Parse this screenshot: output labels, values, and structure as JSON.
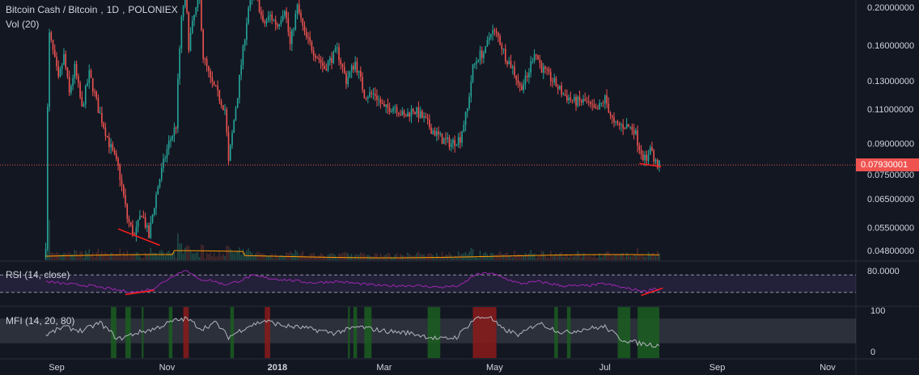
{
  "header": {
    "symbol": "Bitcoin Cash / Bitcoin",
    "interval": "1D",
    "exchange": "POLONIEX",
    "volume_label": "Vol (20)"
  },
  "panes": {
    "rsi_label": "RSI (14, close)",
    "mfi_label": "MFI (14, 20, 80)"
  },
  "colors": {
    "background": "#131722",
    "up": "#26a69a",
    "down": "#ef5350",
    "rsi_line": "#9c27b0",
    "ma_line": "#ff9800",
    "last_price": "#ef5350",
    "trendline": "#ff1e1e",
    "mfi_overbought": "#8b1a1a",
    "mfi_oversold": "#1b5e20",
    "mfi_line": "#b2b5be",
    "axis_text": "#d1d4dc"
  },
  "chart_data": [
    {
      "type": "candlestick",
      "name": "BCH/BTC price",
      "y_scale": "log",
      "last_price": "0.07930001",
      "y_ticks": [
        "0.20000000",
        "0.16000000",
        "0.13000000",
        "0.11000000",
        "0.09000000",
        "0.07500000",
        "0.06500000",
        "0.05500000",
        "0.04800000"
      ],
      "x_ticks": [
        "Sep",
        "Nov",
        "2018",
        "Mar",
        "May",
        "Jul",
        "Sep",
        "Nov"
      ],
      "path": [
        [
          "2017-08-26",
          0.05
        ],
        [
          "2017-08-28",
          0.17
        ],
        [
          "2017-09-02",
          0.13
        ],
        [
          "2017-09-05",
          0.15
        ],
        [
          "2017-09-08",
          0.12
        ],
        [
          "2017-09-11",
          0.14
        ],
        [
          "2017-09-15",
          0.11
        ],
        [
          "2017-09-19",
          0.135
        ],
        [
          "2017-09-24",
          0.11
        ],
        [
          "2017-09-30",
          0.09
        ],
        [
          "2017-10-05",
          0.078
        ],
        [
          "2017-10-10",
          0.058
        ],
        [
          "2017-10-14",
          0.052
        ],
        [
          "2017-10-18",
          0.06
        ],
        [
          "2017-10-22",
          0.052
        ],
        [
          "2017-10-27",
          0.07
        ],
        [
          "2017-11-02",
          0.09
        ],
        [
          "2017-11-06",
          0.1
        ],
        [
          "2017-11-09",
          0.185
        ],
        [
          "2017-11-11",
          0.22
        ],
        [
          "2017-11-13",
          0.16
        ],
        [
          "2017-11-16",
          0.19
        ],
        [
          "2017-11-19",
          0.21
        ],
        [
          "2017-11-21",
          0.15
        ],
        [
          "2017-11-25",
          0.13
        ],
        [
          "2017-11-29",
          0.12
        ],
        [
          "2017-12-03",
          0.11
        ],
        [
          "2017-12-05",
          0.08
        ],
        [
          "2017-12-07",
          0.095
        ],
        [
          "2017-12-10",
          0.12
        ],
        [
          "2017-12-13",
          0.155
        ],
        [
          "2017-12-16",
          0.2
        ],
        [
          "2017-12-20",
          0.22
        ],
        [
          "2017-12-24",
          0.18
        ],
        [
          "2017-12-28",
          0.19
        ],
        [
          "2018-01-01",
          0.18
        ],
        [
          "2018-01-05",
          0.2
        ],
        [
          "2018-01-08",
          0.16
        ],
        [
          "2018-01-12",
          0.2
        ],
        [
          "2018-01-16",
          0.17
        ],
        [
          "2018-01-21",
          0.155
        ],
        [
          "2018-01-27",
          0.14
        ],
        [
          "2018-02-03",
          0.155
        ],
        [
          "2018-02-08",
          0.13
        ],
        [
          "2018-02-13",
          0.145
        ],
        [
          "2018-02-18",
          0.12
        ],
        [
          "2018-02-24",
          0.12
        ],
        [
          "2018-03-01",
          0.11
        ],
        [
          "2018-03-07",
          0.112
        ],
        [
          "2018-03-12",
          0.105
        ],
        [
          "2018-03-17",
          0.11
        ],
        [
          "2018-03-22",
          0.105
        ],
        [
          "2018-03-27",
          0.098
        ],
        [
          "2018-04-02",
          0.092
        ],
        [
          "2018-04-07",
          0.09
        ],
        [
          "2018-04-12",
          0.093
        ],
        [
          "2018-04-16",
          0.11
        ],
        [
          "2018-04-19",
          0.14
        ],
        [
          "2018-04-22",
          0.15
        ],
        [
          "2018-04-26",
          0.155
        ],
        [
          "2018-04-29",
          0.175
        ],
        [
          "2018-05-03",
          0.168
        ],
        [
          "2018-05-07",
          0.15
        ],
        [
          "2018-05-11",
          0.14
        ],
        [
          "2018-05-15",
          0.125
        ],
        [
          "2018-05-19",
          0.132
        ],
        [
          "2018-05-23",
          0.155
        ],
        [
          "2018-05-27",
          0.14
        ],
        [
          "2018-06-02",
          0.13
        ],
        [
          "2018-06-08",
          0.12
        ],
        [
          "2018-06-14",
          0.115
        ],
        [
          "2018-06-20",
          0.115
        ],
        [
          "2018-06-26",
          0.108
        ],
        [
          "2018-07-01",
          0.117
        ],
        [
          "2018-07-06",
          0.1
        ],
        [
          "2018-07-12",
          0.1
        ],
        [
          "2018-07-17",
          0.098
        ],
        [
          "2018-07-20",
          0.088
        ],
        [
          "2018-07-24",
          0.08
        ],
        [
          "2018-07-26",
          0.09
        ],
        [
          "2018-07-28",
          0.081
        ],
        [
          "2018-07-31",
          0.079
        ]
      ]
    },
    {
      "type": "bar",
      "name": "Volume",
      "ma_length": 20
    },
    {
      "type": "line",
      "name": "RSI",
      "y_ticks": [
        "80.0000"
      ],
      "bands": [
        70,
        30
      ],
      "path": [
        [
          "2017-08-26",
          55
        ],
        [
          "2017-09-05",
          50
        ],
        [
          "2017-09-20",
          45
        ],
        [
          "2017-10-05",
          35
        ],
        [
          "2017-10-15",
          30
        ],
        [
          "2017-10-25",
          40
        ],
        [
          "2017-11-05",
          70
        ],
        [
          "2017-11-12",
          82
        ],
        [
          "2017-11-18",
          60
        ],
        [
          "2017-11-25",
          58
        ],
        [
          "2017-12-03",
          48
        ],
        [
          "2017-12-10",
          55
        ],
        [
          "2017-12-18",
          68
        ],
        [
          "2017-12-28",
          62
        ],
        [
          "2018-01-08",
          58
        ],
        [
          "2018-01-20",
          52
        ],
        [
          "2018-02-03",
          55
        ],
        [
          "2018-02-15",
          50
        ],
        [
          "2018-03-01",
          45
        ],
        [
          "2018-03-15",
          46
        ],
        [
          "2018-04-01",
          42
        ],
        [
          "2018-04-12",
          45
        ],
        [
          "2018-04-20",
          70
        ],
        [
          "2018-04-28",
          75
        ],
        [
          "2018-05-05",
          65
        ],
        [
          "2018-05-15",
          50
        ],
        [
          "2018-05-25",
          55
        ],
        [
          "2018-06-08",
          45
        ],
        [
          "2018-06-20",
          45
        ],
        [
          "2018-07-01",
          50
        ],
        [
          "2018-07-12",
          40
        ],
        [
          "2018-07-24",
          32
        ],
        [
          "2018-07-28",
          40
        ],
        [
          "2018-07-31",
          35
        ]
      ]
    },
    {
      "type": "line",
      "name": "MFI",
      "y_ticks": [
        "100",
        "0"
      ],
      "bands": [
        80,
        20
      ],
      "path": [
        [
          "2017-08-26",
          40
        ],
        [
          "2017-09-05",
          60
        ],
        [
          "2017-09-15",
          50
        ],
        [
          "2017-09-25",
          70
        ],
        [
          "2017-10-05",
          30
        ],
        [
          "2017-10-15",
          45
        ],
        [
          "2017-10-25",
          55
        ],
        [
          "2017-11-05",
          75
        ],
        [
          "2017-11-12",
          80
        ],
        [
          "2017-11-20",
          55
        ],
        [
          "2017-11-28",
          70
        ],
        [
          "2017-12-05",
          35
        ],
        [
          "2017-12-15",
          60
        ],
        [
          "2017-12-25",
          75
        ],
        [
          "2018-01-05",
          62
        ],
        [
          "2018-01-15",
          58
        ],
        [
          "2018-02-01",
          45
        ],
        [
          "2018-02-15",
          60
        ],
        [
          "2018-03-01",
          50
        ],
        [
          "2018-03-15",
          45
        ],
        [
          "2018-04-01",
          30
        ],
        [
          "2018-04-10",
          35
        ],
        [
          "2018-04-20",
          80
        ],
        [
          "2018-04-28",
          85
        ],
        [
          "2018-05-05",
          55
        ],
        [
          "2018-05-15",
          40
        ],
        [
          "2018-05-25",
          70
        ],
        [
          "2018-06-08",
          45
        ],
        [
          "2018-06-20",
          55
        ],
        [
          "2018-07-01",
          60
        ],
        [
          "2018-07-10",
          30
        ],
        [
          "2018-07-20",
          20
        ],
        [
          "2018-07-31",
          15
        ]
      ],
      "overbought_zones": [
        [
          "2017-11-10",
          "2017-11-13"
        ],
        [
          "2017-12-25",
          "2017-12-28"
        ],
        [
          "2018-04-19",
          "2018-05-02"
        ]
      ],
      "oversold_zones": [
        [
          "2017-10-01",
          "2017-10-04"
        ],
        [
          "2017-10-09",
          "2017-10-12"
        ],
        [
          "2017-10-18",
          "2017-10-19"
        ],
        [
          "2017-11-02",
          "2017-11-04"
        ],
        [
          "2017-12-06",
          "2017-12-08"
        ],
        [
          "2018-02-09",
          "2018-02-10"
        ],
        [
          "2018-02-12",
          "2018-02-14"
        ],
        [
          "2018-02-18",
          "2018-02-22"
        ],
        [
          "2018-03-25",
          "2018-04-01"
        ],
        [
          "2018-06-03",
          "2018-06-05"
        ],
        [
          "2018-06-10",
          "2018-06-12"
        ],
        [
          "2018-07-08",
          "2018-07-15"
        ],
        [
          "2018-07-19",
          "2018-07-31"
        ]
      ]
    }
  ]
}
